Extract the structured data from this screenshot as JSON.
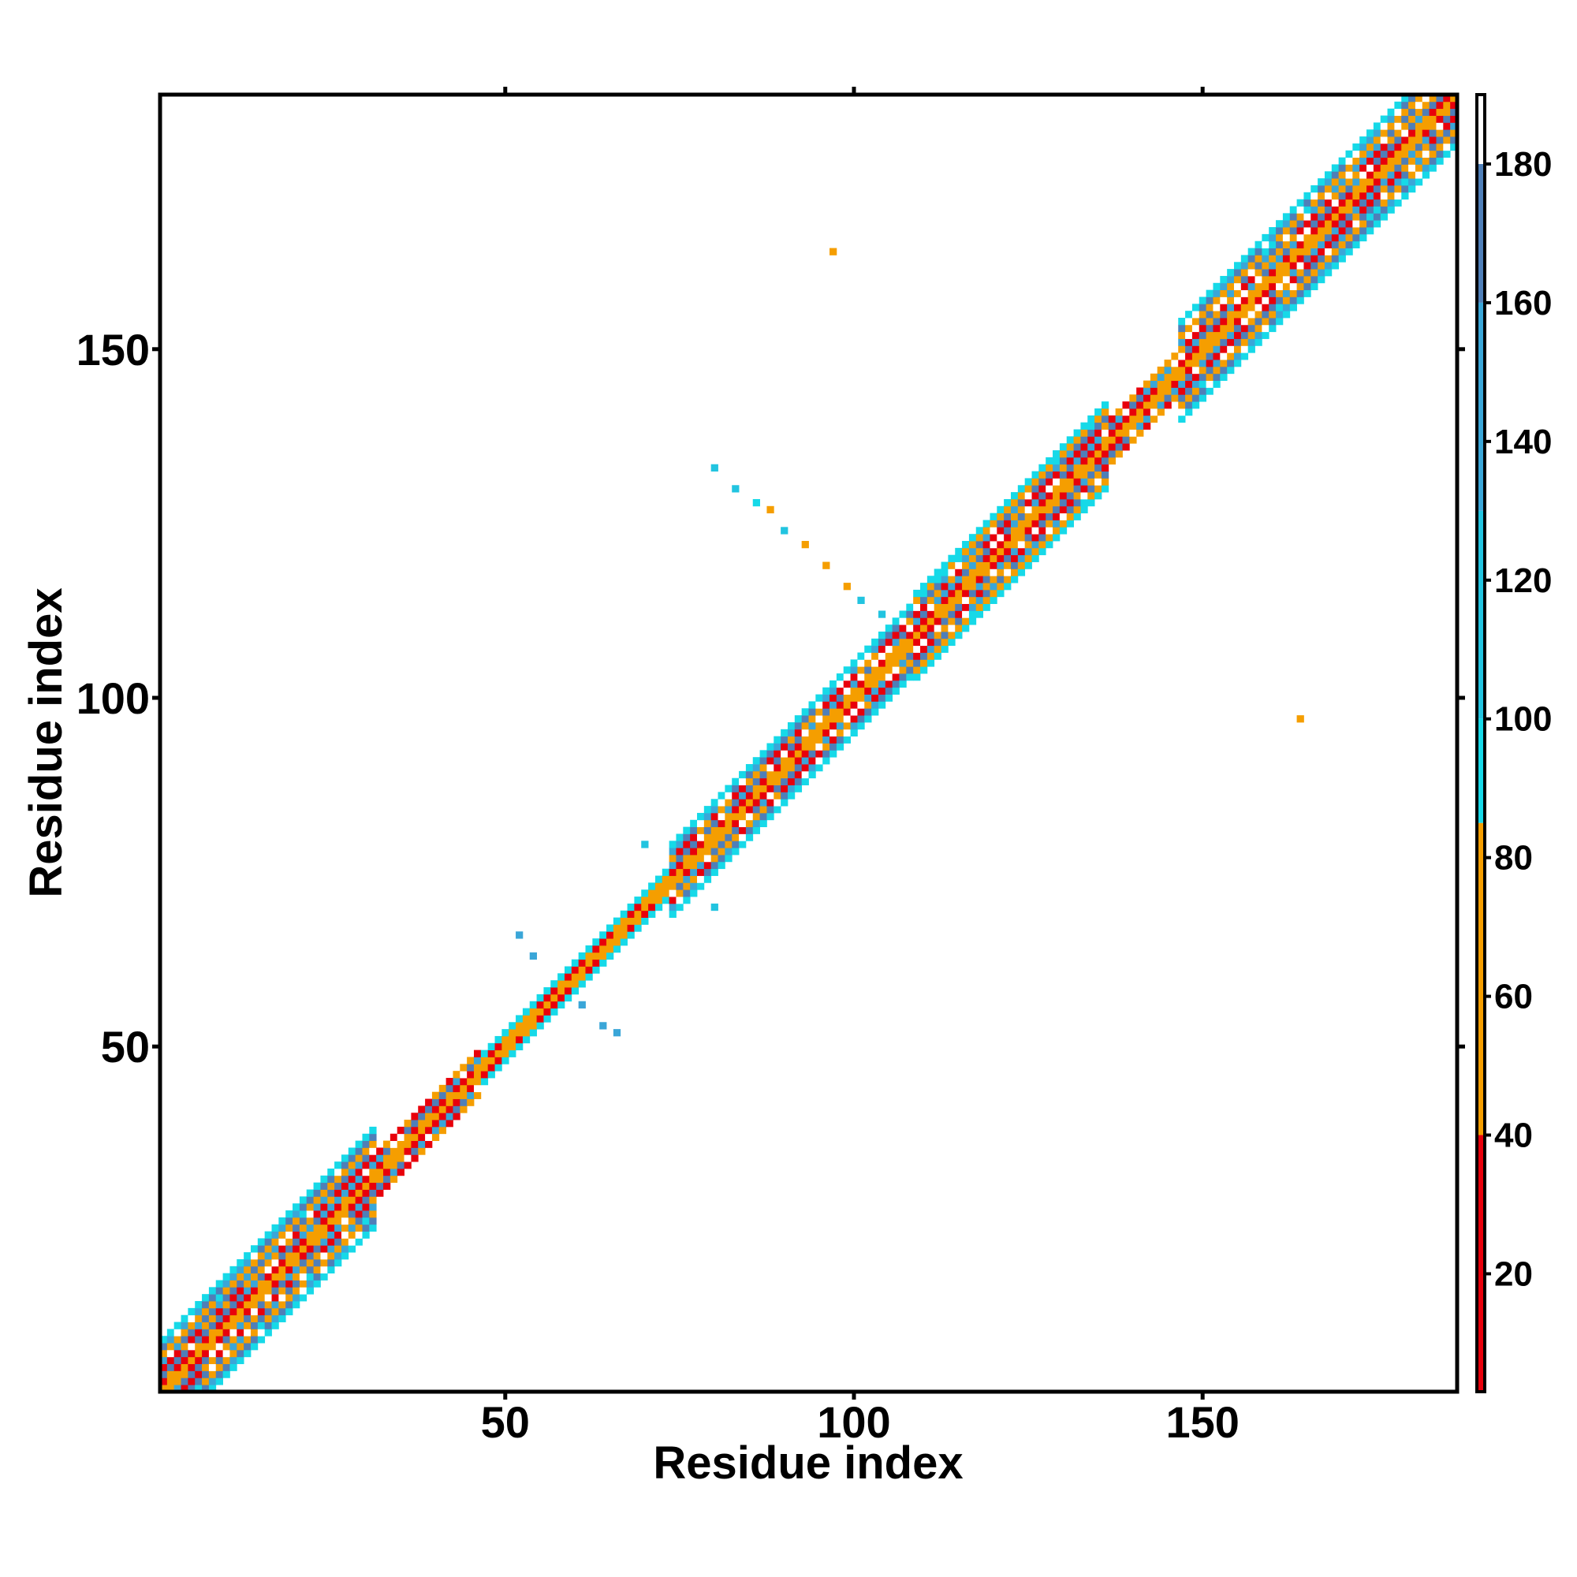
{
  "chart_data": {
    "type": "heatmap",
    "title": "",
    "xlabel": "Residue index",
    "ylabel": "Residue index",
    "xlim": [
      1,
      186
    ],
    "ylim": [
      1,
      186
    ],
    "xticks": [
      50,
      100,
      150
    ],
    "yticks": [
      50,
      100,
      150
    ],
    "colorbar": {
      "ticks": [
        20,
        40,
        60,
        80,
        100,
        120,
        140,
        160,
        180
      ],
      "range": [
        3,
        190
      ],
      "bands": [
        {
          "from": 3,
          "to": 40,
          "color": "#e8000b"
        },
        {
          "from": 40,
          "to": 85,
          "color": "#f59e00"
        },
        {
          "from": 85,
          "to": 100,
          "color": "#16d9e8"
        },
        {
          "from": 100,
          "to": 130,
          "color": "#22c4e0"
        },
        {
          "from": 130,
          "to": 160,
          "color": "#3aa6d8"
        },
        {
          "from": 160,
          "to": 180,
          "color": "#4f7fb8"
        },
        {
          "from": 180,
          "to": 190,
          "color": "#ffffff"
        }
      ]
    },
    "diagonal_bands": [
      {
        "from": 1,
        "to": 31,
        "halfwidth": 7
      },
      {
        "from": 31,
        "to": 46,
        "halfwidth": 3
      },
      {
        "from": 46,
        "to": 56,
        "halfwidth": 2
      },
      {
        "from": 56,
        "to": 73,
        "halfwidth": 2
      },
      {
        "from": 73,
        "to": 108,
        "halfwidth": 5
      },
      {
        "from": 108,
        "to": 136,
        "halfwidth": 6
      },
      {
        "from": 136,
        "to": 146,
        "halfwidth": 3
      },
      {
        "from": 146,
        "to": 186,
        "halfwidth": 7
      }
    ],
    "off_diagonal_contacts": [
      {
        "i": 80,
        "j": 133,
        "value": 120
      },
      {
        "i": 83,
        "j": 130,
        "value": 110
      },
      {
        "i": 86,
        "j": 128,
        "value": 95
      },
      {
        "i": 88,
        "j": 127,
        "value": 60
      },
      {
        "i": 90,
        "j": 124,
        "value": 100
      },
      {
        "i": 93,
        "j": 122,
        "value": 70
      },
      {
        "i": 96,
        "j": 119,
        "value": 60
      },
      {
        "i": 99,
        "j": 116,
        "value": 80
      },
      {
        "i": 101,
        "j": 114,
        "value": 110
      },
      {
        "i": 104,
        "j": 112,
        "value": 120
      },
      {
        "i": 97,
        "j": 164,
        "value": 70
      },
      {
        "i": 164,
        "j": 97,
        "value": 70
      },
      {
        "i": 70,
        "j": 79,
        "value": 110
      },
      {
        "i": 80,
        "j": 70,
        "value": 110
      },
      {
        "i": 52,
        "j": 66,
        "value": 140
      },
      {
        "i": 54,
        "j": 63,
        "value": 140
      },
      {
        "i": 61,
        "j": 56,
        "value": 140
      },
      {
        "i": 64,
        "j": 53,
        "value": 140
      },
      {
        "i": 66,
        "j": 52,
        "value": 140
      }
    ]
  }
}
